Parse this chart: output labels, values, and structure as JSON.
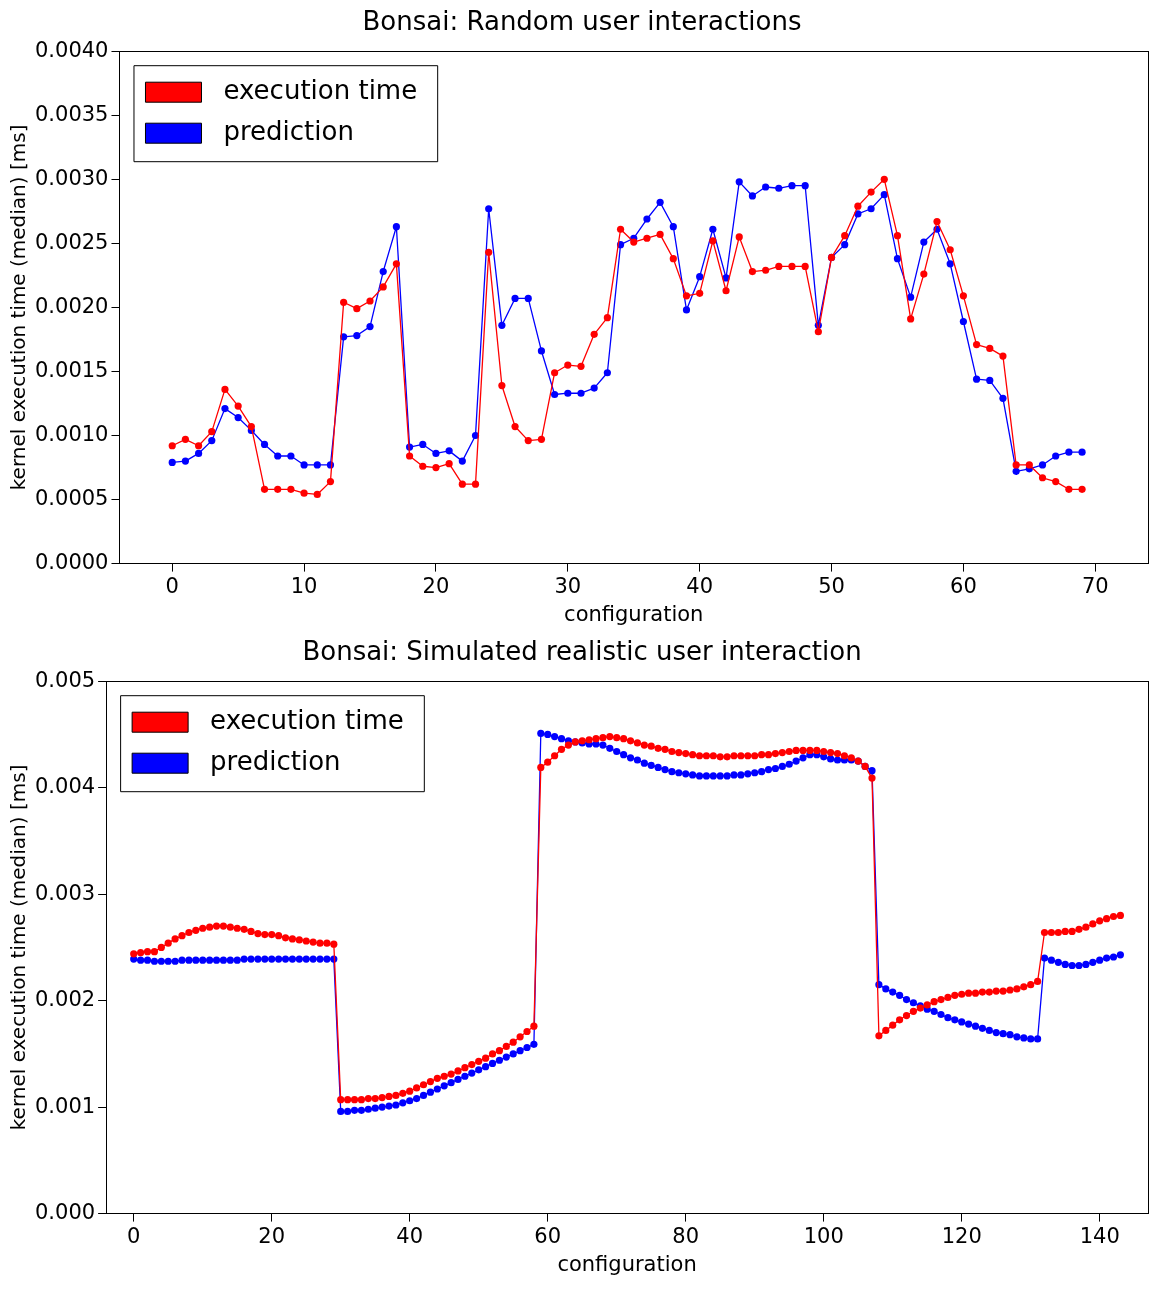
{
  "chart_data": [
    {
      "type": "line",
      "title": "Bonsai: Random user interactions",
      "xlabel": "configuration",
      "ylabel": "kernel execution time (median) [ms]",
      "marker": "circle",
      "legend": "top left",
      "grid": false,
      "x": [
        0,
        1,
        2,
        3,
        4,
        5,
        6,
        7,
        8,
        9,
        10,
        11,
        12,
        13,
        14,
        15,
        16,
        17,
        18,
        19,
        20,
        21,
        22,
        23,
        24,
        25,
        26,
        27,
        28,
        29,
        30,
        31,
        32,
        33,
        34,
        35,
        36,
        37,
        38,
        39,
        40,
        41,
        42,
        43,
        44,
        45,
        46,
        47,
        48,
        49,
        50,
        51,
        52,
        53,
        54,
        55,
        56,
        57,
        58,
        59,
        60,
        61,
        62,
        63,
        64,
        65,
        66,
        67,
        68,
        69
      ],
      "xlim": [
        -4,
        74
      ],
      "xticks": [
        0,
        10,
        20,
        30,
        40,
        50,
        60,
        70
      ],
      "ylim": [
        0,
        0.004
      ],
      "yticks": [
        {
          "value": 0,
          "label": "0.0000"
        },
        {
          "value": 0.0005,
          "label": "0.0005"
        },
        {
          "value": 0.001,
          "label": "0.0010"
        },
        {
          "value": 0.0015,
          "label": "0.0015"
        },
        {
          "value": 0.002,
          "label": "0.0020"
        },
        {
          "value": 0.0025,
          "label": "0.0025"
        },
        {
          "value": 0.003,
          "label": "0.0030"
        },
        {
          "value": 0.0035,
          "label": "0.0035"
        },
        {
          "value": 0.004,
          "label": "0.0040"
        }
      ],
      "series": [
        {
          "name": "execution time",
          "color": "#ff0000",
          "values": [
            0.00092,
            0.00097,
            0.00092,
            0.00103,
            0.00136,
            0.00123,
            0.00107,
            0.00058,
            0.00058,
            0.00058,
            0.00055,
            0.00054,
            0.00064,
            0.00204,
            0.00199,
            0.00205,
            0.00216,
            0.00234,
            0.00084,
            0.00076,
            0.00075,
            0.00078,
            0.00062,
            0.00062,
            0.00243,
            0.00139,
            0.00107,
            0.00096,
            0.00097,
            0.00149,
            0.00155,
            0.00154,
            0.00179,
            0.00192,
            0.00261,
            0.00251,
            0.00254,
            0.00257,
            0.00238,
            0.00209,
            0.00211,
            0.00252,
            0.00213,
            0.00255,
            0.00228,
            0.00229,
            0.00232,
            0.00232,
            0.00232,
            0.00181,
            0.00239,
            0.00256,
            0.00279,
            0.0029,
            0.003,
            0.00256,
            0.00191,
            0.00226,
            0.00267,
            0.00245,
            0.00209,
            0.00171,
            0.00168,
            0.00162,
            0.00077,
            0.00077,
            0.00067,
            0.00064,
            0.00058,
            0.00058
          ]
        },
        {
          "name": "prediction",
          "color": "#0000ff",
          "values": [
            0.00079,
            0.0008,
            0.00086,
            0.00096,
            0.00121,
            0.00114,
            0.00104,
            0.00093,
            0.00084,
            0.00084,
            0.00077,
            0.00077,
            0.00077,
            0.00177,
            0.00178,
            0.00185,
            0.00228,
            0.00263,
            0.00091,
            0.00093,
            0.00086,
            0.00088,
            0.0008,
            0.001,
            0.00277,
            0.00186,
            0.00207,
            0.00207,
            0.00166,
            0.00132,
            0.00133,
            0.00133,
            0.00137,
            0.00149,
            0.00249,
            0.00254,
            0.00269,
            0.00282,
            0.00263,
            0.00198,
            0.00224,
            0.00261,
            0.00223,
            0.00298,
            0.00287,
            0.00294,
            0.00293,
            0.00295,
            0.00295,
            0.00186,
            0.00239,
            0.00249,
            0.00273,
            0.00277,
            0.00288,
            0.00238,
            0.00208,
            0.00251,
            0.00261,
            0.00234,
            0.00189,
            0.00144,
            0.00143,
            0.00129,
            0.00072,
            0.00074,
            0.00077,
            0.00084,
            0.00087,
            0.00087
          ]
        }
      ]
    },
    {
      "type": "line",
      "title": "Bonsai: Simulated realistic user interaction",
      "xlabel": "configuration",
      "ylabel": "kernel execution time (median) [ms]",
      "marker": "circle",
      "legend": "top left",
      "grid": false,
      "x": [
        0,
        1,
        2,
        3,
        4,
        5,
        6,
        7,
        8,
        9,
        10,
        11,
        12,
        13,
        14,
        15,
        16,
        17,
        18,
        19,
        20,
        21,
        22,
        23,
        24,
        25,
        26,
        27,
        28,
        29,
        30,
        31,
        32,
        33,
        34,
        35,
        36,
        37,
        38,
        39,
        40,
        41,
        42,
        43,
        44,
        45,
        46,
        47,
        48,
        49,
        50,
        51,
        52,
        53,
        54,
        55,
        56,
        57,
        58,
        59,
        60,
        61,
        62,
        63,
        64,
        65,
        66,
        67,
        68,
        69,
        70,
        71,
        72,
        73,
        74,
        75,
        76,
        77,
        78,
        79,
        80,
        81,
        82,
        83,
        84,
        85,
        86,
        87,
        88,
        89,
        90,
        91,
        92,
        93,
        94,
        95,
        96,
        97,
        98,
        99,
        100,
        101,
        102,
        103,
        104,
        105,
        106,
        107,
        108,
        109,
        110,
        111,
        112,
        113,
        114,
        115,
        116,
        117,
        118,
        119,
        120,
        121,
        122,
        123,
        124,
        125,
        126,
        127,
        128,
        129,
        130,
        131,
        132,
        133,
        134,
        135,
        136,
        137,
        138,
        139,
        140,
        141,
        142,
        143
      ],
      "xlim": [
        -4,
        147
      ],
      "xticks": [
        0,
        20,
        40,
        60,
        80,
        100,
        120,
        140
      ],
      "ylim": [
        0,
        0.005
      ],
      "yticks": [
        {
          "value": 0,
          "label": "0.000"
        },
        {
          "value": 0.001,
          "label": "0.001"
        },
        {
          "value": 0.002,
          "label": "0.002"
        },
        {
          "value": 0.003,
          "label": "0.003"
        },
        {
          "value": 0.004,
          "label": "0.004"
        },
        {
          "value": 0.005,
          "label": "0.005"
        }
      ],
      "series": [
        {
          "name": "execution time",
          "color": "#ff0000",
          "values": [
            0.00244,
            0.00245,
            0.00246,
            0.00246,
            0.0025,
            0.00254,
            0.00258,
            0.00261,
            0.00264,
            0.00266,
            0.00268,
            0.00269,
            0.0027,
            0.0027,
            0.00269,
            0.00268,
            0.00267,
            0.00265,
            0.00263,
            0.00262,
            0.00262,
            0.00261,
            0.00259,
            0.00258,
            0.00257,
            0.00256,
            0.00255,
            0.00254,
            0.00254,
            0.00253,
            0.00107,
            0.00107,
            0.00107,
            0.00107,
            0.00108,
            0.00108,
            0.00109,
            0.0011,
            0.00111,
            0.00113,
            0.00115,
            0.00118,
            0.00121,
            0.00124,
            0.00127,
            0.00129,
            0.00131,
            0.00134,
            0.00137,
            0.0014,
            0.00143,
            0.00146,
            0.0015,
            0.00153,
            0.00157,
            0.00161,
            0.00166,
            0.00171,
            0.00176,
            0.00419,
            0.00424,
            0.0043,
            0.00436,
            0.0044,
            0.00443,
            0.00444,
            0.00445,
            0.00446,
            0.00447,
            0.00448,
            0.00447,
            0.00446,
            0.00444,
            0.00442,
            0.0044,
            0.00439,
            0.00437,
            0.00436,
            0.00434,
            0.00433,
            0.00432,
            0.00431,
            0.0043,
            0.0043,
            0.0043,
            0.00429,
            0.00429,
            0.0043,
            0.0043,
            0.0043,
            0.0043,
            0.00431,
            0.00431,
            0.00432,
            0.00433,
            0.00434,
            0.00435,
            0.00435,
            0.00435,
            0.00435,
            0.00434,
            0.00433,
            0.00432,
            0.0043,
            0.00428,
            0.00425,
            0.0042,
            0.00409,
            0.00167,
            0.00172,
            0.00177,
            0.00182,
            0.00186,
            0.0019,
            0.00193,
            0.00196,
            0.00199,
            0.00201,
            0.00203,
            0.00205,
            0.00206,
            0.00207,
            0.00207,
            0.00208,
            0.00208,
            0.00209,
            0.00209,
            0.0021,
            0.00211,
            0.00213,
            0.00215,
            0.00218,
            0.00264,
            0.00264,
            0.00264,
            0.00265,
            0.00265,
            0.00267,
            0.00269,
            0.00272,
            0.00275,
            0.00277,
            0.00279,
            0.0028
          ]
        },
        {
          "name": "prediction",
          "color": "#0000ff",
          "values": [
            0.00239,
            0.00238,
            0.00238,
            0.00237,
            0.00237,
            0.00237,
            0.00237,
            0.00238,
            0.00238,
            0.00238,
            0.00238,
            0.00238,
            0.00238,
            0.00238,
            0.00238,
            0.00238,
            0.00239,
            0.00239,
            0.00239,
            0.00239,
            0.00239,
            0.00239,
            0.00239,
            0.00239,
            0.00239,
            0.00239,
            0.00239,
            0.00239,
            0.00239,
            0.00239,
            0.00096,
            0.00096,
            0.00097,
            0.00097,
            0.00098,
            0.00099,
            0.001,
            0.00101,
            0.00102,
            0.00104,
            0.00106,
            0.00108,
            0.00111,
            0.00114,
            0.00117,
            0.0012,
            0.00123,
            0.00126,
            0.00129,
            0.00132,
            0.00135,
            0.00138,
            0.00141,
            0.00144,
            0.00147,
            0.0015,
            0.00153,
            0.00156,
            0.00159,
            0.00451,
            0.0045,
            0.00448,
            0.00446,
            0.00444,
            0.00443,
            0.00442,
            0.00441,
            0.00441,
            0.0044,
            0.00437,
            0.00434,
            0.00431,
            0.00428,
            0.00426,
            0.00423,
            0.00421,
            0.00419,
            0.00417,
            0.00415,
            0.00414,
            0.00413,
            0.00412,
            0.00411,
            0.00411,
            0.00411,
            0.00411,
            0.00411,
            0.00412,
            0.00412,
            0.00413,
            0.00414,
            0.00415,
            0.00417,
            0.00418,
            0.0042,
            0.00422,
            0.00425,
            0.00428,
            0.00431,
            0.00431,
            0.00429,
            0.00427,
            0.00426,
            0.00426,
            0.00426,
            0.00425,
            0.0042,
            0.00416,
            0.00215,
            0.00211,
            0.00208,
            0.00205,
            0.00201,
            0.00198,
            0.00195,
            0.00192,
            0.0019,
            0.00187,
            0.00184,
            0.00182,
            0.0018,
            0.00178,
            0.00176,
            0.00174,
            0.00172,
            0.0017,
            0.00169,
            0.00168,
            0.00166,
            0.00165,
            0.00164,
            0.00164,
            0.0024,
            0.00238,
            0.00236,
            0.00234,
            0.00233,
            0.00233,
            0.00234,
            0.00236,
            0.00238,
            0.0024,
            0.00241,
            0.00243
          ]
        }
      ]
    }
  ]
}
